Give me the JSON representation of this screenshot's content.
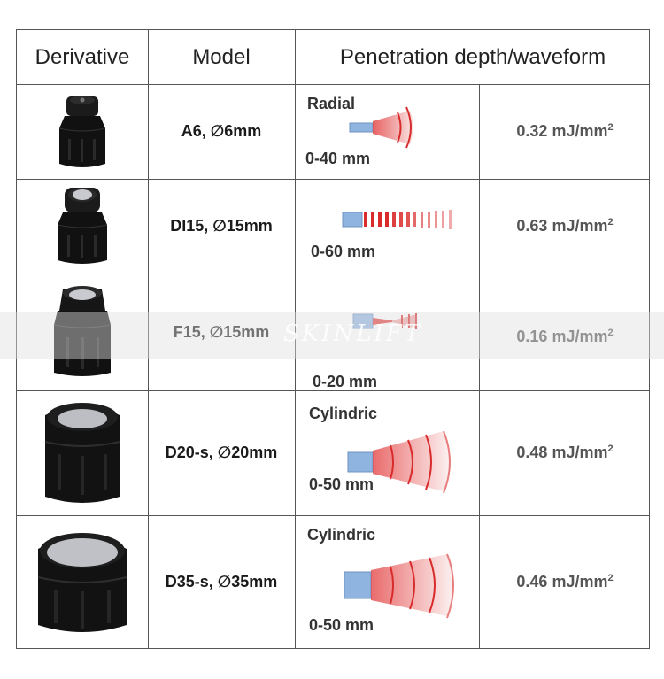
{
  "table": {
    "headers": {
      "derivative": "Derivative",
      "model": "Model",
      "penetration": "Penetration depth/waveform"
    },
    "rows": [
      {
        "model": "A6, ∅6mm",
        "wave_type": "Radial",
        "depth": "0-40 mm",
        "energy": "0.32 mJ/mm",
        "energy_sup": "2"
      },
      {
        "model": "DI15, ∅15mm",
        "wave_type": "",
        "depth": "0-60 mm",
        "energy": "0.63 mJ/mm",
        "energy_sup": "2"
      },
      {
        "model": "F15, ∅15mm",
        "wave_type": "",
        "depth": "0-20 mm",
        "energy": "0.16 mJ/mm",
        "energy_sup": "2"
      },
      {
        "model": "D20-s, ∅20mm",
        "wave_type": "Cylindric",
        "depth": "0-50 mm",
        "energy": "0.48 mJ/mm",
        "energy_sup": "2"
      },
      {
        "model": "D35-s, ∅35mm",
        "wave_type": "Cylindric",
        "depth": "0-50 mm",
        "energy": "0.46 mJ/mm",
        "energy_sup": "2"
      }
    ]
  },
  "watermark": "SKINLIFT",
  "colors": {
    "border": "#555555",
    "applicator_body": "#111111",
    "emitter_face": "#b9bbc0",
    "wave_red": "#d92b2b",
    "emitter_blue": "#8fb4e0"
  }
}
